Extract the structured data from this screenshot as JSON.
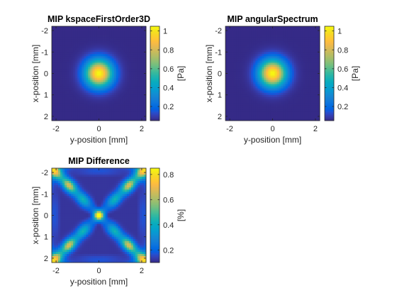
{
  "figure": {
    "colormap": "parula",
    "background": "#ffffff",
    "axis_color": "#262626"
  },
  "chart_data": [
    {
      "type": "heatmap",
      "title": "MIP kspaceFirstOrder3D",
      "xlabel": "y-position [mm]",
      "ylabel": "x-position [mm]",
      "xlim": [
        -2.2,
        2.2
      ],
      "ylim": [
        -2.2,
        2.2
      ],
      "y_reversed": true,
      "x_ticks": [
        "-2",
        "0",
        "2"
      ],
      "x_tick_values": [
        -2,
        0,
        2
      ],
      "y_ticks": [
        "-2",
        "-1",
        "0",
        "1",
        "2"
      ],
      "y_tick_values": [
        -2,
        -1,
        0,
        1,
        2
      ],
      "colorbar": {
        "label": "[Pa]",
        "clim": [
          0.05,
          1.05
        ],
        "ticks": [
          "0.2",
          "0.4",
          "0.6",
          "0.8",
          "1"
        ],
        "tick_values": [
          0.2,
          0.4,
          0.6,
          0.8,
          1.0
        ]
      },
      "field": {
        "pattern": "gaussian_focus",
        "center": [
          0,
          0
        ],
        "peak": 1.05,
        "floor": 0.05
      }
    },
    {
      "type": "heatmap",
      "title": "MIP angularSpectrum",
      "xlabel": "y-position [mm]",
      "ylabel": "x-position [mm]",
      "xlim": [
        -2.2,
        2.2
      ],
      "ylim": [
        -2.2,
        2.2
      ],
      "y_reversed": true,
      "x_ticks": [
        "-2",
        "0",
        "2"
      ],
      "x_tick_values": [
        -2,
        0,
        2
      ],
      "y_ticks": [
        "-2",
        "-1",
        "0",
        "1",
        "2"
      ],
      "y_tick_values": [
        -2,
        -1,
        0,
        1,
        2
      ],
      "colorbar": {
        "label": "[Pa]",
        "clim": [
          0.05,
          1.05
        ],
        "ticks": [
          "0.2",
          "0.4",
          "0.6",
          "0.8",
          "1"
        ],
        "tick_values": [
          0.2,
          0.4,
          0.6,
          0.8,
          1.0
        ]
      },
      "field": {
        "pattern": "gaussian_focus",
        "center": [
          0,
          0
        ],
        "peak": 1.05,
        "floor": 0.05
      }
    },
    {
      "type": "heatmap",
      "title": "MIP Difference",
      "xlabel": "y-position [mm]",
      "ylabel": "x-position [mm]",
      "xlim": [
        -2.2,
        2.2
      ],
      "ylim": [
        -2.2,
        2.2
      ],
      "y_reversed": true,
      "x_ticks": [
        "-2",
        "0",
        "2"
      ],
      "x_tick_values": [
        -2,
        0,
        2
      ],
      "y_ticks": [
        "-2",
        "-1",
        "0",
        "1",
        "2"
      ],
      "y_tick_values": [
        -2,
        -1,
        0,
        1,
        2
      ],
      "colorbar": {
        "label": "[%]",
        "clim": [
          0.1,
          0.85
        ],
        "ticks": [
          "0.2",
          "0.4",
          "0.6",
          "0.8"
        ],
        "tick_values": [
          0.2,
          0.4,
          0.6,
          0.8
        ]
      },
      "field": {
        "pattern": "diagonal_x_difference",
        "center_peak": 0.85,
        "diagonal_peak": 0.7,
        "floor": 0.12
      }
    }
  ]
}
